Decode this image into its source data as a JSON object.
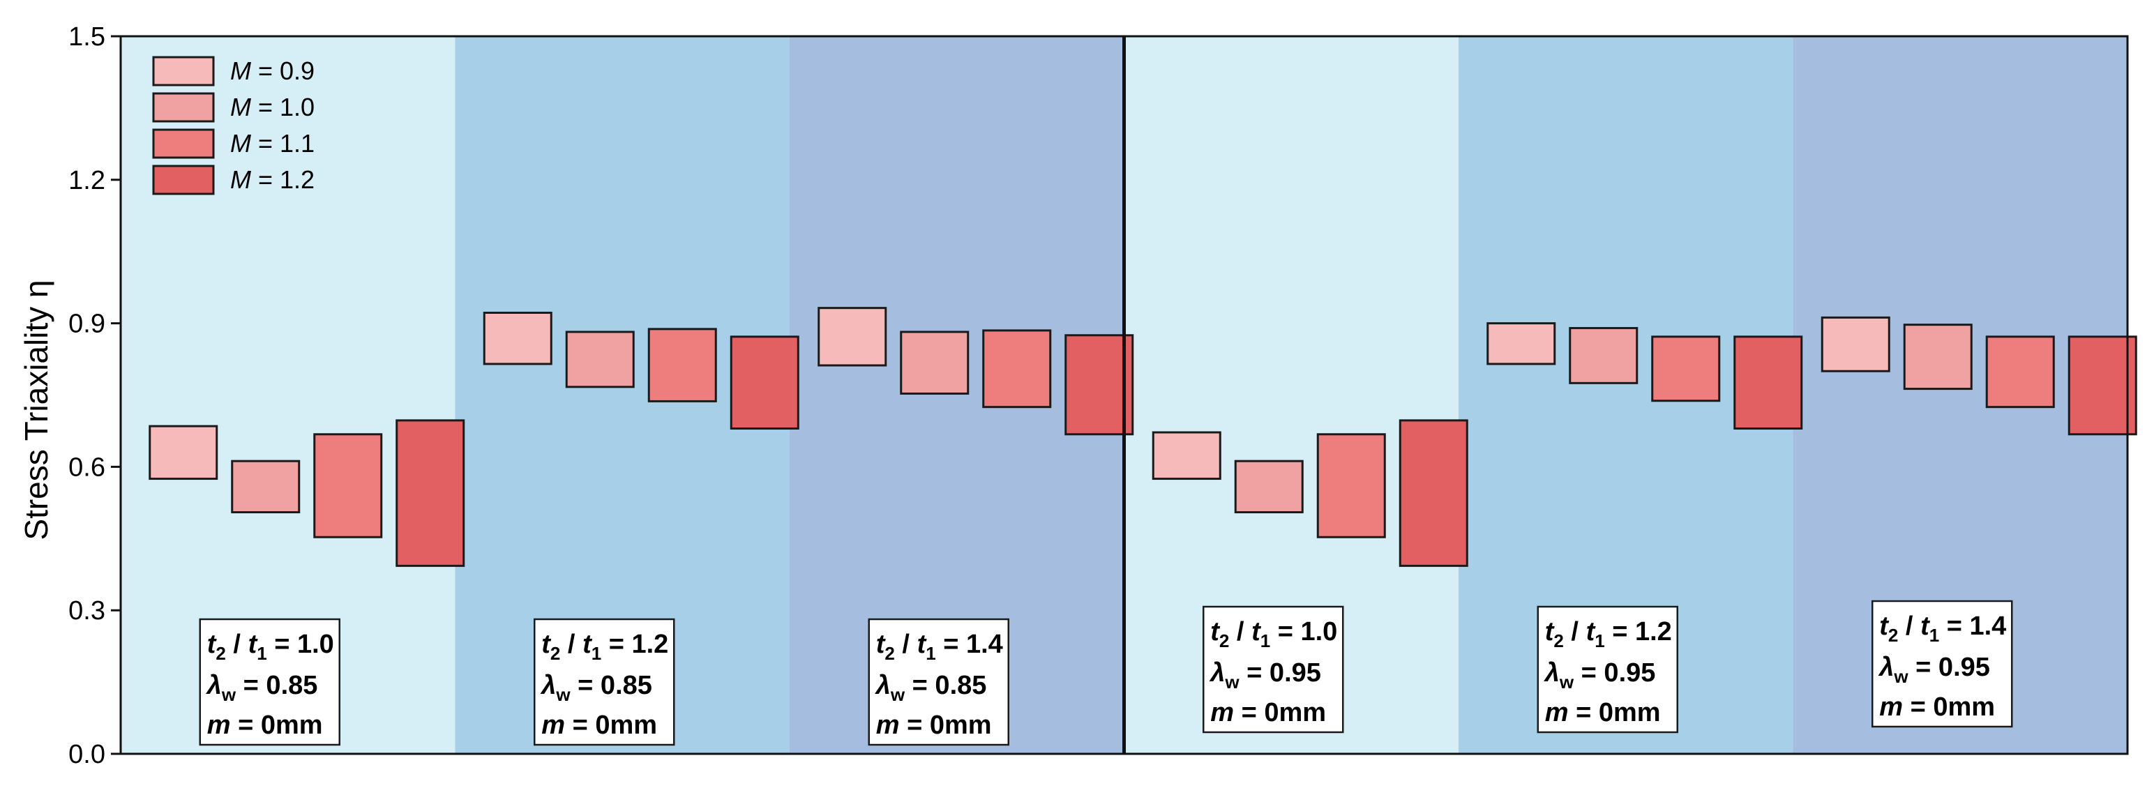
{
  "chart_data": {
    "type": "box",
    "ylabel": "Stress Triaxiality η",
    "ylim": [
      0,
      1.5
    ],
    "yticks": [
      "0.0",
      "0.3",
      "0.6",
      "0.9",
      "1.2",
      "1.5"
    ],
    "legend": {
      "placement": "top-left",
      "entries": [
        {
          "label": "0.9",
          "color": "#F7BABA"
        },
        {
          "label": "1.0",
          "color": "#F0A2A2"
        },
        {
          "label": "1.1",
          "color": "#EE7E7E"
        },
        {
          "label": "1.2",
          "color": "#E36062"
        }
      ]
    },
    "group_colors": [
      "#D6EFF6",
      "#A7CFE7",
      "#A5BEDF"
    ],
    "groups": [
      {
        "t_ratio": "1.0",
        "lambda": "0.85",
        "m": "0mm",
        "boxes": [
          [
            0.575,
            0.685
          ],
          [
            0.505,
            0.612
          ],
          [
            0.453,
            0.668
          ],
          [
            0.393,
            0.697
          ]
        ]
      },
      {
        "t_ratio": "1.2",
        "lambda": "0.85",
        "m": "0mm",
        "boxes": [
          [
            0.815,
            0.922
          ],
          [
            0.767,
            0.882
          ],
          [
            0.737,
            0.888
          ],
          [
            0.68,
            0.872
          ]
        ]
      },
      {
        "t_ratio": "1.4",
        "lambda": "0.85",
        "m": "0mm",
        "boxes": [
          [
            0.812,
            0.932
          ],
          [
            0.753,
            0.882
          ],
          [
            0.725,
            0.885
          ],
          [
            0.668,
            0.875
          ]
        ]
      },
      {
        "t_ratio": "1.0",
        "lambda": "0.95",
        "m": "0mm",
        "boxes": [
          [
            0.575,
            0.672
          ],
          [
            0.505,
            0.612
          ],
          [
            0.453,
            0.668
          ],
          [
            0.393,
            0.697
          ]
        ]
      },
      {
        "t_ratio": "1.2",
        "lambda": "0.95",
        "m": "0mm",
        "boxes": [
          [
            0.815,
            0.9
          ],
          [
            0.775,
            0.89
          ],
          [
            0.738,
            0.872
          ],
          [
            0.68,
            0.872
          ]
        ]
      },
      {
        "t_ratio": "1.4",
        "lambda": "0.95",
        "m": "0mm",
        "boxes": [
          [
            0.8,
            0.912
          ],
          [
            0.763,
            0.897
          ],
          [
            0.725,
            0.872
          ],
          [
            0.668,
            0.872
          ]
        ]
      }
    ],
    "legend_symbol": "M",
    "ann_t_label": "t",
    "ann_lambda_label": "λ",
    "ann_lambda_sub": "w",
    "ann_m_label": "m"
  }
}
